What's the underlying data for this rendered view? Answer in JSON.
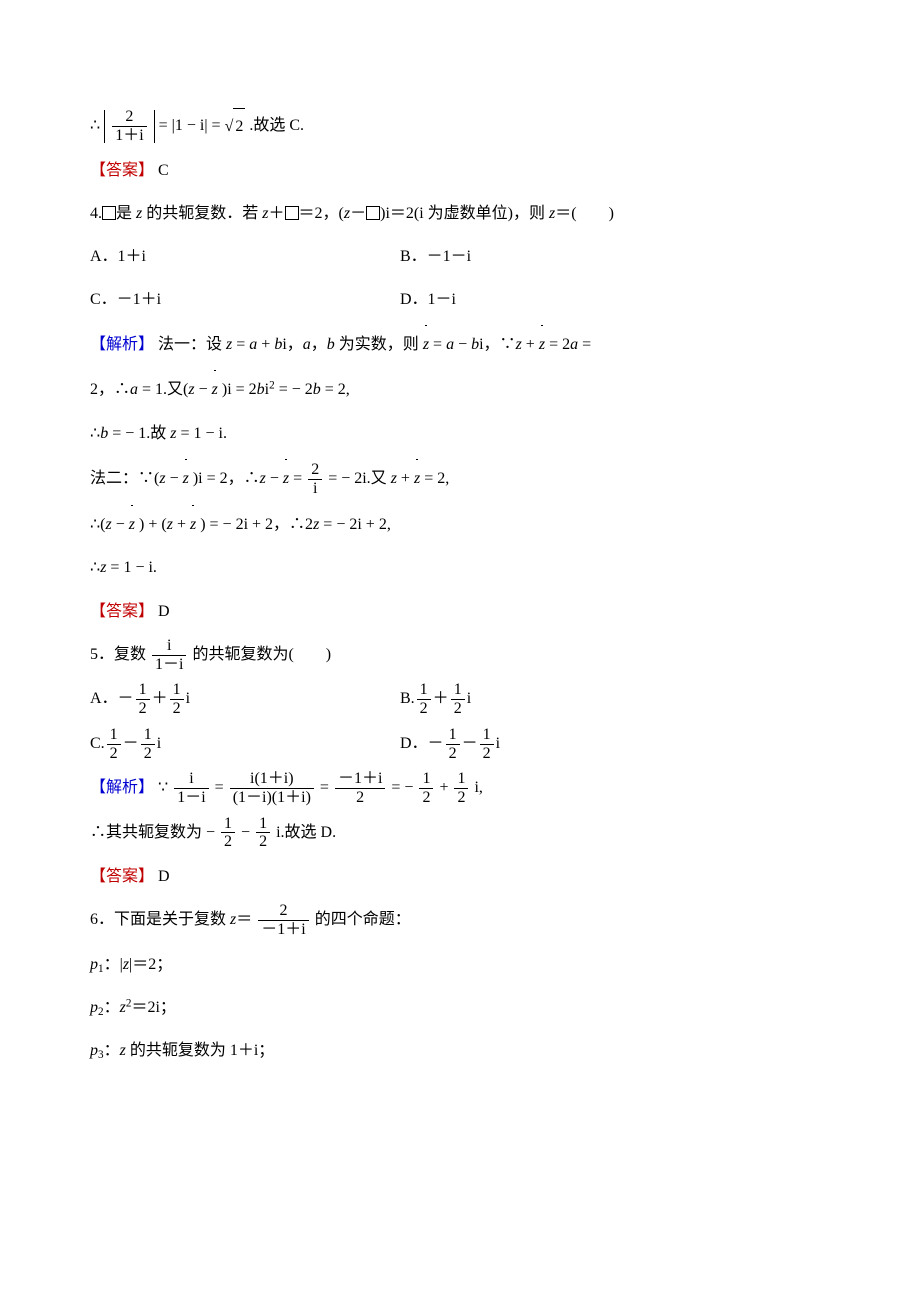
{
  "colors": {
    "text": "#000000",
    "red": "#c00000",
    "blue": "#0000d0",
    "bg": "#ffffff"
  },
  "typography": {
    "body_fontsize_pt": 12,
    "line_height": 2.2,
    "font_family": "SimSun, Times New Roman"
  },
  "labels": {
    "answer": "【答案】",
    "analysis": "【解析】",
    "sel_c": " C",
    "sel_d": " D"
  },
  "q3": {
    "deriv": "∴",
    "abs_num": "2",
    "abs_den": "1＋i",
    "eq1": " = |1 − i| = ",
    "sqrt": "2",
    "end": ".故选 C."
  },
  "q4": {
    "stem_a": "4.",
    "stem_b": "是 ",
    "stem_z": "z",
    "stem_c": " 的共轭复数．若 ",
    "stem_d": "＋",
    "stem_e": "＝2，(",
    "stem_f": "－",
    "stem_g": ")i＝2(i 为虚数单位)，则 ",
    "stem_h": "＝(　　)",
    "optA": "A．1＋i",
    "optB": "B．－1－i",
    "optC": "C．－1＋i",
    "optD": "D．1－i",
    "m1a": "法一：设 ",
    "m1z": "z",
    "m1b": " = ",
    "m1a2": "a",
    "m1c": " + ",
    "m1b2": "b",
    "m1d": "i，",
    "m1e": "，",
    "m1f": " 为实数，则 ",
    "m1g": " − ",
    "m1h": "i，∵",
    "m1i": " + ",
    "m1j": " = 2",
    "m1a3": "a",
    "m1k": " =",
    "m1_l2a": "2，∴",
    "m1_l2_a": "a",
    "m1_l2b": " = 1.又(",
    "m1_l2c": " − ",
    "m1_l2d": " )i = 2",
    "m1_l2_b": "b",
    "m1_l2e": "i",
    "m1_l2f": " = − 2",
    "m1_l2g": " = 2,",
    "m1_l3a": "∴",
    "m1_l3_b": "b",
    "m1_l3b": " = − 1.故 ",
    "m1_l3_z": "z",
    "m1_l3c": " = 1 − i.",
    "m2a": "法二：∵(",
    "m2b": " − ",
    "m2c": " )i = 2，∴",
    "m2d": " − ",
    "m2e": " = ",
    "m2_num": "2",
    "m2_den": "i",
    "m2f": " = − 2i.又 ",
    "m2g": " + ",
    "m2h": " = 2,",
    "m2_l2a": "∴(",
    "m2_l2b": " − ",
    "m2_l2c": " ) + (",
    "m2_l2d": " + ",
    "m2_l2e": " ) = − 2i + 2，∴2",
    "m2_l2f": " = − 2i + 2,",
    "m2_l3a": "∴",
    "m2_l3_z": "z",
    "m2_l3b": " = 1 − i."
  },
  "q5": {
    "stem_a": "5．复数",
    "num": "i",
    "den": "1－i",
    "stem_b": "的共轭复数为(　　)",
    "optA_pre": "A．－",
    "half_num": "1",
    "half_den": "2",
    "plus_half": "＋",
    "i": "i",
    "optB_pre": "B.",
    "optC_pre": "C.",
    "minus_half": "－",
    "optD_pre": "D．－",
    "ana_a": "∵",
    "ana_b": " = ",
    "ana_num2": "i(1＋i)",
    "ana_den2": "(1－i)(1＋i)",
    "ana_num3": "－1＋i",
    "ana_den3": "2",
    "ana_c": " = − ",
    "ana_d": " + ",
    "ana_e": "i,",
    "concl_a": "∴其共轭复数为 − ",
    "concl_b": " − ",
    "concl_c": "i.故选 D."
  },
  "q6": {
    "stem_a": "6．下面是关于复数 ",
    "stem_z": "z",
    "stem_b": "＝",
    "num": "2",
    "den": "－1＋i",
    "stem_c": "的四个命题：",
    "p1_sub": "1",
    "p1_a": "：|",
    "p1_b": "|＝2；",
    "p2_sub": "2",
    "p2_a": "：",
    "p2_b": "＝2i；",
    "p3_sub": "3",
    "p3_a": "：",
    "p3_b": " 的共轭复数为 1＋i；",
    "p_var": "p",
    "z_var": "z"
  }
}
